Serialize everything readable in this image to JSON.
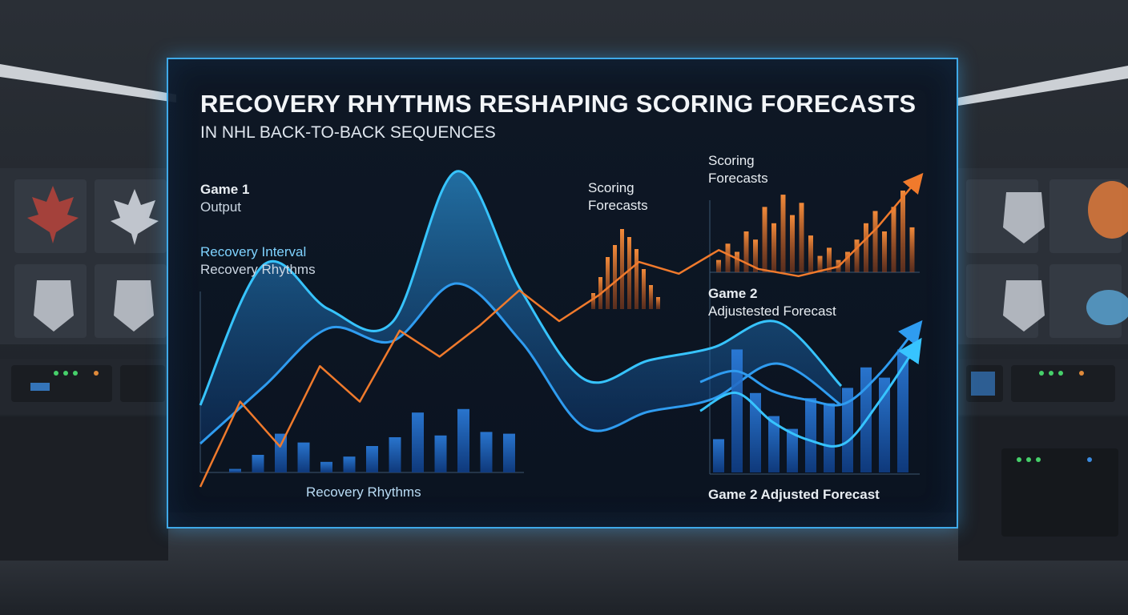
{
  "title": "RECOVERY RHYTHMS RESHAPING SCORING FORECASTS",
  "subtitle": "IN NHL BACK-TO-BACK SEQUENCES",
  "labels": {
    "game1_line1": "Game 1",
    "game1_line2": "Output",
    "recovery_interval": "Recovery Interval",
    "recovery_rhythms_side": "Recovery Rhythms",
    "scoring_forecasts_mid_1": "Scoring",
    "scoring_forecasts_mid_2": "Forecasts",
    "scoring_forecasts_top_1": "Scoring",
    "scoring_forecasts_top_2": "Forecasts",
    "game2_line1": "Game 2",
    "game2_line2": "Adjustested Forecast",
    "recovery_rhythms_bottom": "Recovery Rhythms",
    "game2_bottom": "Game 2 Adjusted Forecast"
  },
  "colors": {
    "accent_blue": "#2f9cf0",
    "cyan": "#37c4ff",
    "orange": "#f07a2c",
    "frame": "#3fa9e8"
  },
  "chart_data": [
    {
      "type": "area",
      "name": "Recovery band (left/center)",
      "x": [
        0,
        1,
        2,
        3,
        4,
        5,
        6,
        7,
        8,
        9,
        10
      ],
      "upper": [
        0.22,
        0.66,
        0.52,
        0.48,
        0.95,
        0.58,
        0.3,
        0.36,
        0.4,
        0.48,
        0.28
      ],
      "lower": [
        0.1,
        0.28,
        0.46,
        0.42,
        0.6,
        0.42,
        0.15,
        0.2,
        0.24,
        0.35,
        0.22
      ],
      "ylim": [
        0,
        1
      ]
    },
    {
      "type": "bar",
      "name": "Recovery Rhythms bars",
      "values": [
        0.02,
        0.1,
        0.22,
        0.17,
        0.06,
        0.09,
        0.15,
        0.2,
        0.34,
        0.21,
        0.36,
        0.23,
        0.22
      ],
      "ylim": [
        0,
        1
      ]
    },
    {
      "type": "line",
      "name": "Orange trend",
      "x": [
        0,
        1,
        2,
        3,
        4,
        5,
        6,
        7,
        8,
        9,
        10,
        11,
        12,
        13,
        14,
        15,
        16,
        17,
        18
      ],
      "y": [
        0.0,
        0.36,
        0.17,
        0.51,
        0.36,
        0.66,
        0.55,
        0.68,
        0.83,
        0.7,
        0.81,
        0.95,
        0.9,
        1.0,
        0.92,
        0.89,
        0.93,
        1.1,
        1.3
      ],
      "ylim": [
        0,
        1.4
      ]
    },
    {
      "type": "bar",
      "name": "Scoring Forecasts (mid)",
      "values": [
        0.2,
        0.4,
        0.65,
        0.8,
        1.0,
        0.9,
        0.75,
        0.5,
        0.3,
        0.15
      ],
      "ylim": [
        0,
        1
      ]
    },
    {
      "type": "bar",
      "name": "Scoring Forecasts (top)",
      "values": [
        0.15,
        0.35,
        0.25,
        0.5,
        0.4,
        0.8,
        0.6,
        0.95,
        0.7,
        0.85,
        0.45,
        0.2,
        0.3,
        0.15,
        0.25,
        0.4,
        0.6,
        0.75,
        0.5,
        0.8,
        1.0,
        0.55
      ],
      "ylim": [
        0,
        1
      ]
    },
    {
      "type": "bar",
      "name": "Game 2 Adjusted Forecast bars",
      "values": [
        0.26,
        0.96,
        0.62,
        0.44,
        0.34,
        0.58,
        0.54,
        0.66,
        0.82,
        0.74,
        0.96
      ],
      "ylim": [
        0,
        1
      ]
    },
    {
      "type": "line",
      "name": "Game 2 forecast curves",
      "x": [
        0,
        1,
        2,
        3,
        4,
        5,
        6
      ],
      "upper": [
        0.5,
        0.56,
        0.45,
        0.4,
        0.38,
        0.55,
        0.8
      ],
      "lower": [
        0.34,
        0.44,
        0.28,
        0.18,
        0.16,
        0.4,
        0.7
      ],
      "ylim": [
        0,
        1
      ]
    }
  ]
}
